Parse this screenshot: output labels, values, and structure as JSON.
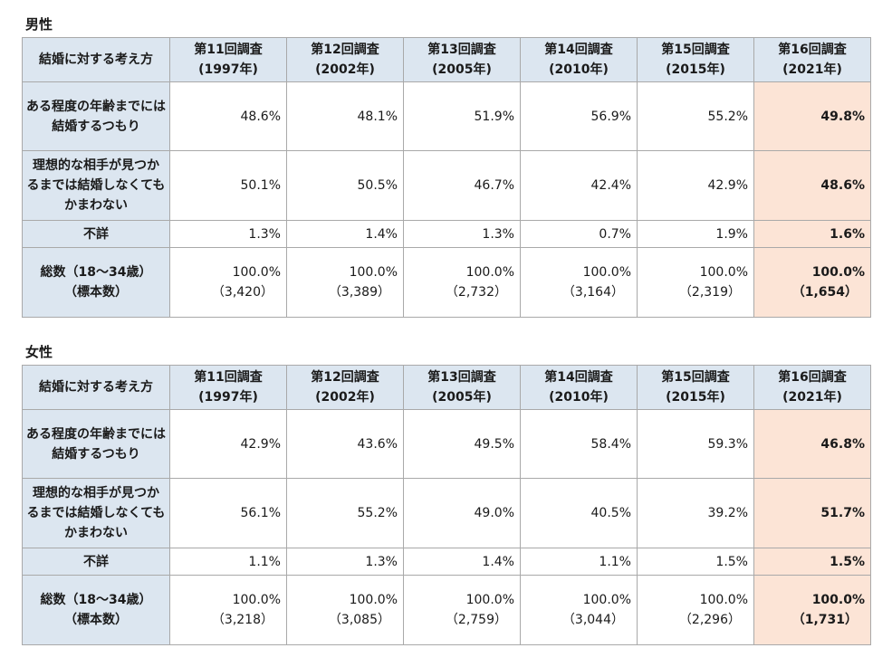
{
  "headers": {
    "corner": "結婚に対する考え方",
    "surveys": [
      {
        "name": "第11回調査",
        "year": "(1997年)"
      },
      {
        "name": "第12回調査",
        "year": "(2002年)"
      },
      {
        "name": "第13回調査",
        "year": "(2005年)"
      },
      {
        "name": "第14回調査",
        "year": "(2010年)"
      },
      {
        "name": "第15回調査",
        "year": "(2015年)"
      },
      {
        "name": "第16回調査",
        "year": "(2021年)"
      }
    ]
  },
  "row_labels": {
    "by_age": [
      "ある程度の年齢までには",
      "結婚するつもり"
    ],
    "ideal": [
      "理想的な相手が見つか",
      "るまでは結婚しなくても",
      "かまわない"
    ],
    "unknown": "不詳",
    "total": [
      "総数（18～34歳）",
      "（標本数）"
    ]
  },
  "sections": [
    {
      "title": "男性",
      "by_age": [
        "48.6%",
        "48.1%",
        "51.9%",
        "56.9%",
        "55.2%",
        "49.8%"
      ],
      "ideal": [
        "50.1%",
        "50.5%",
        "46.7%",
        "42.4%",
        "42.9%",
        "48.6%"
      ],
      "unknown": [
        "1.3%",
        "1.4%",
        "1.3%",
        "0.7%",
        "1.9%",
        "1.6%"
      ],
      "total": [
        "100.0%",
        "100.0%",
        "100.0%",
        "100.0%",
        "100.0%",
        "100.0%"
      ],
      "sample": [
        "（3,420）",
        "（3,389）",
        "（2,732）",
        "（3,164）",
        "（2,319）",
        "（1,654）"
      ]
    },
    {
      "title": "女性",
      "by_age": [
        "42.9%",
        "43.6%",
        "49.5%",
        "58.4%",
        "59.3%",
        "46.8%"
      ],
      "ideal": [
        "56.1%",
        "55.2%",
        "49.0%",
        "40.5%",
        "39.2%",
        "51.7%"
      ],
      "unknown": [
        "1.1%",
        "1.3%",
        "1.4%",
        "1.1%",
        "1.5%",
        "1.5%"
      ],
      "total": [
        "100.0%",
        "100.0%",
        "100.0%",
        "100.0%",
        "100.0%",
        "100.0%"
      ],
      "sample": [
        "（3,218）",
        "（3,085）",
        "（2,759）",
        "（3,044）",
        "（2,296）",
        "（1,731）"
      ]
    }
  ],
  "colors": {
    "header_bg": "#dce6f0",
    "highlight_bg": "#fce4d6",
    "border": "#a9a9a9"
  }
}
